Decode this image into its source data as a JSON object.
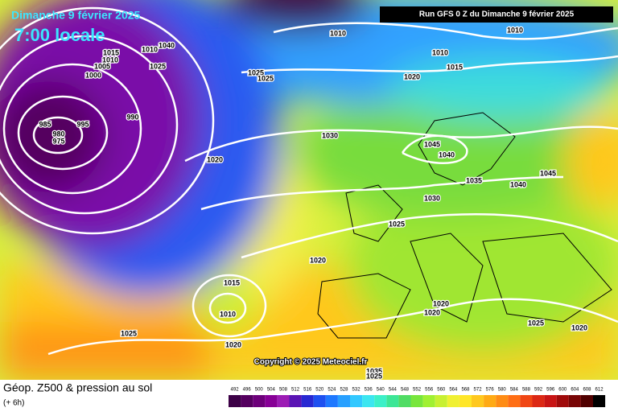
{
  "header": {
    "title": "Dimanche 9 février 2025",
    "time": "7:00 locale",
    "run": "Run GFS 0 Z du Dimanche 9 février 2025"
  },
  "isobars": [
    "1010",
    "1010",
    "1010",
    "1015",
    "1020",
    "1025",
    "1025",
    "1040",
    "1010",
    "1015",
    "1010",
    "1005",
    "1000",
    "1025",
    "990",
    "985",
    "995",
    "980",
    "975",
    "1020",
    "1030",
    "1045",
    "1040",
    "1035",
    "1040",
    "1045",
    "1030",
    "1025",
    "1020",
    "1015",
    "1010",
    "1025",
    "1020",
    "1020",
    "1020",
    "1025",
    "1020",
    "1035",
    "1025"
  ],
  "copyright": "Copyright © 2025 Meteociel.fr",
  "footer": {
    "title": "Géop. Z500 & pression au sol",
    "lead": "(+ 6h)"
  },
  "scale": {
    "values": [
      492,
      496,
      500,
      504,
      508,
      512,
      516,
      520,
      524,
      528,
      532,
      536,
      540,
      544,
      548,
      552,
      556,
      560,
      564,
      568,
      572,
      576,
      580,
      584,
      588,
      592,
      596,
      600,
      604,
      608,
      612
    ],
    "colors": [
      "#3c0046",
      "#55005f",
      "#6d007a",
      "#870096",
      "#9c1cb4",
      "#5a14b4",
      "#2828d2",
      "#1e50f0",
      "#1e78ff",
      "#28a0ff",
      "#32c8ff",
      "#3ce6f0",
      "#3cf0c8",
      "#3ce696",
      "#50dc64",
      "#78e63c",
      "#a0f032",
      "#c8f032",
      "#f0f032",
      "#ffe628",
      "#ffc81e",
      "#ffaa14",
      "#ff8c14",
      "#ff6e14",
      "#f04614",
      "#dc2814",
      "#c81414",
      "#a00a0a",
      "#780505",
      "#500000",
      "#000000"
    ]
  }
}
